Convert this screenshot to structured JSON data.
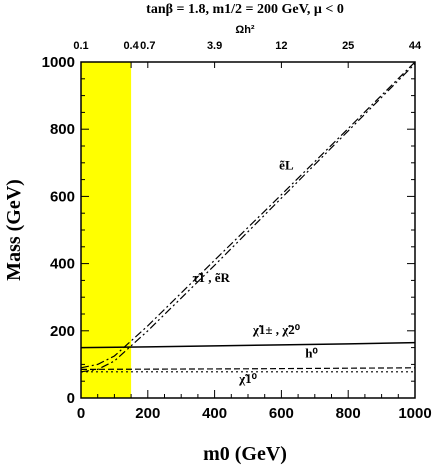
{
  "chart_data": {
    "type": "line",
    "title": "tanβ = 1.8, m1/2 = 200 GeV, μ < 0",
    "xlabel": "m0 (GeV)",
    "ylabel": "Mass (GeV)",
    "top_axis_label": "Ωh²",
    "xlim": [
      0,
      1000
    ],
    "ylim": [
      0,
      1000
    ],
    "x_ticks": [
      "0",
      "200",
      "400",
      "600",
      "800",
      "1000"
    ],
    "y_ticks": [
      "0",
      "200",
      "400",
      "600",
      "800",
      "1000"
    ],
    "top_ticks": [
      {
        "label": "0.1",
        "x": 0
      },
      {
        "label": "0.4",
        "x": 150
      },
      {
        "label": "0.7",
        "x": 200
      },
      {
        "label": "3.9",
        "x": 400
      },
      {
        "label": "12",
        "x": 600
      },
      {
        "label": "25",
        "x": 800
      },
      {
        "label": "44",
        "x": 1000
      }
    ],
    "shaded_region": {
      "x": [
        0,
        150
      ],
      "color": "#ffff00"
    },
    "series": [
      {
        "name": "ẽL",
        "style": "dash-dot",
        "x": [
          0,
          50,
          100,
          200,
          400,
          600,
          800,
          1000
        ],
        "y": [
          90,
          100,
          125,
          215,
          410,
          605,
          802,
          1000
        ]
      },
      {
        "name": "τ̃1 , ẽR",
        "style": "dash-dot-dot",
        "x": [
          0,
          50,
          100,
          200,
          400,
          600,
          800,
          1000
        ],
        "y": [
          78,
          85,
          110,
          200,
          395,
          595,
          795,
          995
        ]
      },
      {
        "name": "χ̃1± , χ̃2⁰",
        "style": "solid",
        "x": [
          0,
          200,
          400,
          600,
          800,
          1000
        ],
        "y": [
          150,
          152,
          155,
          158,
          161,
          165
        ]
      },
      {
        "name": "h⁰",
        "style": "dashed",
        "x": [
          0,
          500,
          1000
        ],
        "y": [
          85,
          87,
          90
        ]
      },
      {
        "name": "χ̃1⁰",
        "style": "dotted",
        "x": [
          0,
          500,
          1000
        ],
        "y": [
          78,
          78,
          78
        ]
      }
    ],
    "curve_labels": [
      {
        "text": "ẽL",
        "x": 615,
        "y": 680
      },
      {
        "text": "τ̃1 , ẽR",
        "x": 390,
        "y": 345
      },
      {
        "text": "χ̃1± , χ̃2⁰",
        "x": 585,
        "y": 190
      },
      {
        "text": "h⁰",
        "x": 690,
        "y": 120
      },
      {
        "text": "χ̃1⁰",
        "x": 500,
        "y": 45
      }
    ],
    "grid": false,
    "legend": "none"
  }
}
